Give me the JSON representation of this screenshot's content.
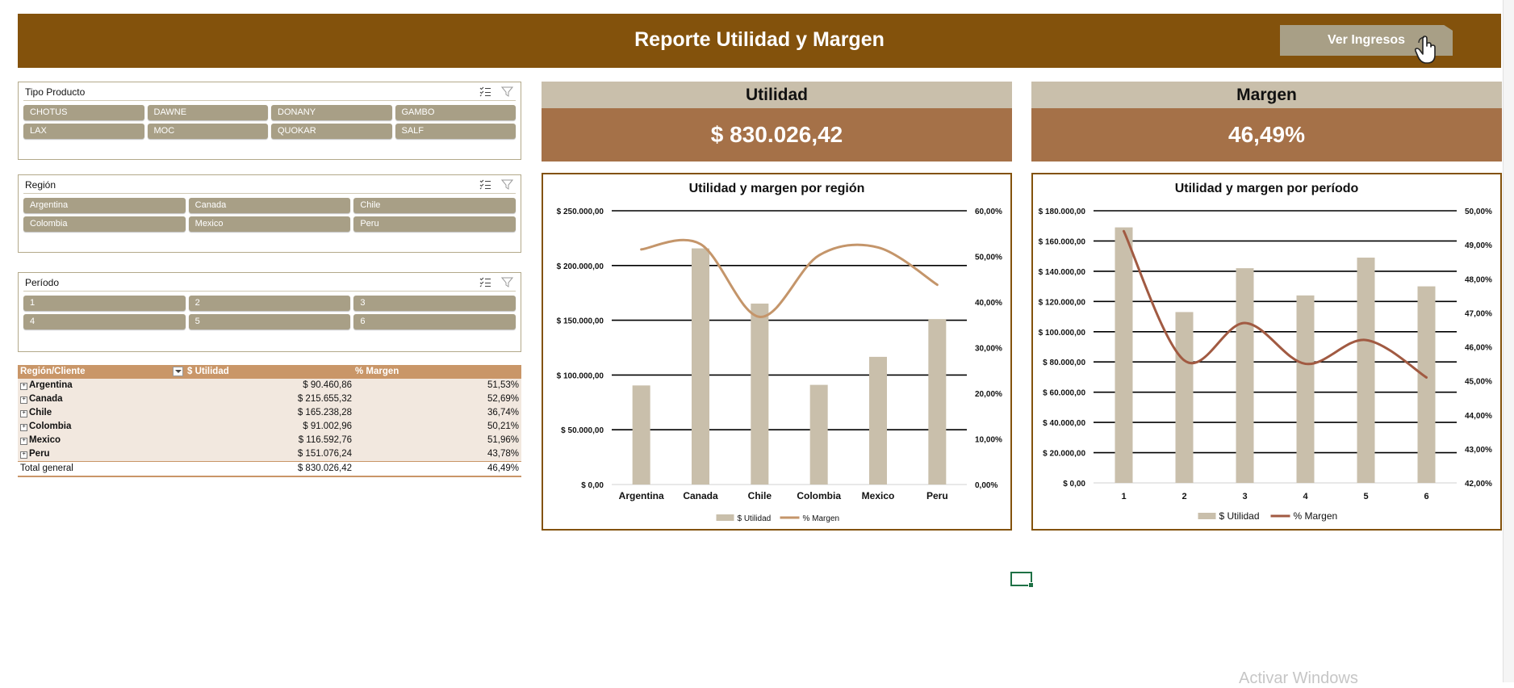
{
  "header": {
    "title": "Reporte Utilidad y Margen",
    "button_label": "Ver Ingresos"
  },
  "slicers": [
    {
      "title": "Tipo Producto",
      "columns": 4,
      "items": [
        "CHOTUS",
        "DAWNE",
        "DONANY",
        "GAMBO",
        "LAX",
        "MOC",
        "QUOKAR",
        "SALF"
      ]
    },
    {
      "title": "Región",
      "columns": 3,
      "items": [
        "Argentina",
        "Canada",
        "Chile",
        "Colombia",
        "Mexico",
        "Peru"
      ]
    },
    {
      "title": "Período",
      "columns": 3,
      "items": [
        "1",
        "2",
        "3",
        "4",
        "5",
        "6"
      ]
    }
  ],
  "pivot": {
    "headers": [
      "Región/Cliente",
      "$ Utilidad",
      "% Margen"
    ],
    "rows": [
      {
        "name": "Argentina",
        "utilidad": "$ 90.460,86",
        "margen": "51,53%"
      },
      {
        "name": "Canada",
        "utilidad": "$ 215.655,32",
        "margen": "52,69%"
      },
      {
        "name": "Chile",
        "utilidad": "$ 165.238,28",
        "margen": "36,74%"
      },
      {
        "name": "Colombia",
        "utilidad": "$ 91.002,96",
        "margen": "50,21%"
      },
      {
        "name": "Mexico",
        "utilidad": "$ 116.592,76",
        "margen": "51,96%"
      },
      {
        "name": "Peru",
        "utilidad": "$ 151.076,24",
        "margen": "43,78%"
      }
    ],
    "total": {
      "name": "Total general",
      "utilidad": "$ 830.026,42",
      "margen": "46,49%"
    }
  },
  "kpis": {
    "utilidad": {
      "label": "Utilidad",
      "value": "$ 830.026,42"
    },
    "margen": {
      "label": "Margen",
      "value": "46,49%"
    }
  },
  "chart_data": [
    {
      "type": "bar",
      "title": "Utilidad y margen por región",
      "categories": [
        "Argentina",
        "Canada",
        "Chile",
        "Colombia",
        "Mexico",
        "Peru"
      ],
      "series": [
        {
          "name": "$ Utilidad",
          "type": "bar",
          "axis": "left",
          "color": "#c9bfab",
          "values": [
            90460.86,
            215655.32,
            165238.28,
            91002.96,
            116592.76,
            151076.24
          ]
        },
        {
          "name": "% Margen",
          "type": "line",
          "axis": "right",
          "color": "#c4956a",
          "values": [
            51.53,
            52.69,
            36.74,
            50.21,
            51.96,
            43.78
          ]
        }
      ],
      "ylim": [
        0,
        250000
      ],
      "yticks": [
        0,
        50000,
        100000,
        150000,
        200000,
        250000
      ],
      "ytick_labels": [
        "$ 0,00",
        "$ 50.000,00",
        "$ 100.000,00",
        "$ 150.000,00",
        "$ 200.000,00",
        "$ 250.000,00"
      ],
      "y2lim": [
        0,
        60
      ],
      "y2ticks": [
        0,
        10,
        20,
        30,
        40,
        50,
        60
      ],
      "y2tick_labels": [
        "0,00%",
        "10,00%",
        "20,00%",
        "30,00%",
        "40,00%",
        "50,00%",
        "60,00%"
      ],
      "grid": true,
      "legend": "bottom"
    },
    {
      "type": "bar",
      "title": "Utilidad y margen por período",
      "categories": [
        "1",
        "2",
        "3",
        "4",
        "5",
        "6"
      ],
      "series": [
        {
          "name": "$ Utilidad",
          "type": "bar",
          "axis": "left",
          "color": "#c9bfab",
          "values": [
            169000,
            113000,
            142000,
            124000,
            149000,
            130000
          ]
        },
        {
          "name": "% Margen",
          "type": "line",
          "axis": "right",
          "color": "#a15a42",
          "values": [
            49.4,
            45.6,
            46.7,
            45.5,
            46.2,
            45.1
          ]
        }
      ],
      "ylim": [
        0,
        180000
      ],
      "yticks": [
        0,
        20000,
        40000,
        60000,
        80000,
        100000,
        120000,
        140000,
        160000,
        180000
      ],
      "ytick_labels": [
        "$ 0,00",
        "$ 20.000,00",
        "$ 40.000,00",
        "$ 60.000,00",
        "$ 80.000,00",
        "$ 100.000,00",
        "$ 120.000,00",
        "$ 140.000,00",
        "$ 160.000,00",
        "$ 180.000,00"
      ],
      "y2lim": [
        42,
        50
      ],
      "y2ticks": [
        42,
        43,
        44,
        45,
        46,
        47,
        48,
        49,
        50
      ],
      "y2tick_labels": [
        "42,00%",
        "43,00%",
        "44,00%",
        "45,00%",
        "46,00%",
        "47,00%",
        "48,00%",
        "49,00%",
        "50,00%"
      ],
      "grid": true,
      "legend": "bottom"
    }
  ],
  "watermark": "Activar Windows"
}
